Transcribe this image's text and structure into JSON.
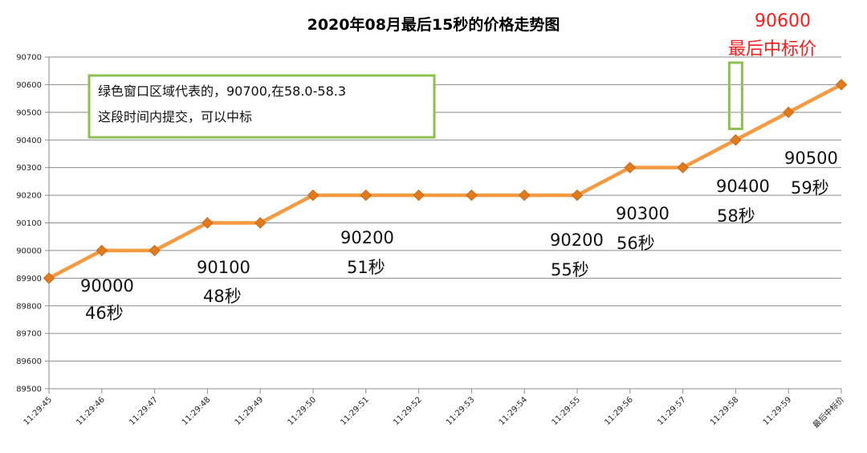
{
  "chart_data": {
    "type": "line",
    "title": "2020年08月最后15秒的价格走势图",
    "categories": [
      "11:29:45",
      "11:29:46",
      "11:29:47",
      "11:29:48",
      "11:29:49",
      "11:29:50",
      "11:29:51",
      "11:29:52",
      "11:29:53",
      "11:29:54",
      "11:29:55",
      "11:29:56",
      "11:29:57",
      "11:29:58",
      "11:29:59",
      "最后中标价"
    ],
    "values": [
      89900,
      90000,
      90000,
      90100,
      90100,
      90200,
      90200,
      90200,
      90200,
      90200,
      90200,
      90300,
      90300,
      90400,
      90500,
      90600
    ],
    "ylim": [
      89500,
      90700
    ],
    "yticks": [
      89500,
      89600,
      89700,
      89800,
      89900,
      90000,
      90100,
      90200,
      90300,
      90400,
      90500,
      90600,
      90700
    ],
    "grid": true,
    "legend": "none",
    "series_color": "#f39a42",
    "marker_color": "#e07b1d",
    "annotations": [
      {
        "price": "90000",
        "time": "46秒"
      },
      {
        "price": "90100",
        "time": "48秒"
      },
      {
        "price": "90200",
        "time": "51秒"
      },
      {
        "price": "90200",
        "time": "55秒"
      },
      {
        "price": "90300",
        "time": "56秒"
      },
      {
        "price": "90400",
        "time": "58秒"
      },
      {
        "price": "90500",
        "time": "59秒"
      },
      {
        "price": "90600",
        "time": "最后中标价"
      }
    ],
    "note_box": {
      "line1": "绿色窗口区域代表的，90700,在58.0-58.3",
      "line2": "这段时间内提交，可以中标",
      "border_color": "#8cc152"
    },
    "highlight_box": {
      "category": "11:29:58",
      "range": [
        90440,
        90700
      ],
      "color": "#8cc152"
    },
    "final_color": "#ff1a1a"
  }
}
